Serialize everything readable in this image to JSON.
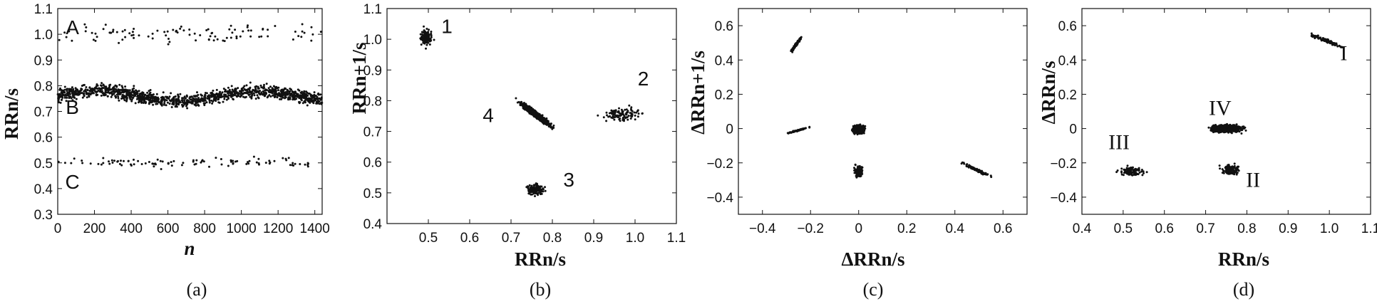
{
  "chart_data": [
    {
      "type": "scatter",
      "caption": "(a)",
      "xlabel": "n",
      "ylabel": "RRn/s",
      "xlim": [
        0,
        1440
      ],
      "ylim": [
        0.3,
        1.1
      ],
      "xticks": [
        "0",
        "200",
        "400",
        "600",
        "800",
        "1000",
        "1200",
        "1400"
      ],
      "yticks": [
        "0.3",
        "0.4",
        "0.5",
        "0.6",
        "0.7",
        "0.8",
        "0.9",
        "1.0",
        "1.1"
      ],
      "annotations": [
        {
          "text": "A",
          "x": 80,
          "y": 1.0
        },
        {
          "text": "B",
          "x": 80,
          "y": 0.69
        },
        {
          "text": "C",
          "x": 80,
          "y": 0.4
        }
      ],
      "clusters": [
        {
          "band": "A",
          "n_range": [
            0,
            1440
          ],
          "y_center": 1.0,
          "y_spread": 0.04,
          "points": 130
        },
        {
          "band": "B",
          "n_range": [
            0,
            1440
          ],
          "y_center": 0.76,
          "y_spread": 0.025,
          "points": 1300
        },
        {
          "band": "C",
          "n_range": [
            0,
            1440
          ],
          "y_center": 0.5,
          "y_spread": 0.02,
          "points": 130
        }
      ]
    },
    {
      "type": "scatter",
      "caption": "(b)",
      "xlabel": "RRn/s",
      "ylabel": "RRn+1/s",
      "xlim": [
        0.4,
        1.1
      ],
      "ylim": [
        0.4,
        1.1
      ],
      "xticks": [
        "0.5",
        "0.6",
        "0.7",
        "0.8",
        "0.9",
        "1.0",
        "1.1"
      ],
      "yticks": [
        "0.4",
        "0.5",
        "0.6",
        "0.7",
        "0.8",
        "0.9",
        "1.0",
        "1.1"
      ],
      "annotations": [
        {
          "text": "1",
          "x": 0.545,
          "y": 1.02
        },
        {
          "text": "2",
          "x": 1.02,
          "y": 0.85
        },
        {
          "text": "3",
          "x": 0.84,
          "y": 0.52
        },
        {
          "text": "4",
          "x": 0.645,
          "y": 0.73
        }
      ],
      "clusters": [
        {
          "id": "1",
          "x": [
            0.47,
            0.52
          ],
          "y": [
            0.95,
            1.06
          ],
          "points": 120
        },
        {
          "id": "2",
          "x": [
            0.88,
            1.06
          ],
          "y": [
            0.71,
            0.8
          ],
          "points": 110
        },
        {
          "id": "3",
          "x": [
            0.72,
            0.8
          ],
          "y": [
            0.47,
            0.55
          ],
          "points": 110
        },
        {
          "id": "4",
          "x": [
            0.7,
            0.82
          ],
          "y": [
            0.69,
            0.82
          ],
          "points": 1100
        }
      ]
    },
    {
      "type": "scatter",
      "caption": "(c)",
      "xlabel": "ΔRRn/s",
      "ylabel": "ΔRRn+1/s",
      "xlim": [
        -0.5,
        0.7
      ],
      "ylim": [
        -0.5,
        0.7
      ],
      "xticks": [
        "−0.4",
        "−0.2",
        "0",
        "0.2",
        "0.4",
        "0.6"
      ],
      "yticks": [
        "−0.4",
        "−0.2",
        "0",
        "0.2",
        "0.4",
        "0.6"
      ],
      "clusters": [
        {
          "x": [
            -0.3,
            -0.22
          ],
          "y": [
            0.4,
            0.58
          ],
          "points": 110
        },
        {
          "x": [
            -0.32,
            -0.18
          ],
          "y": [
            -0.04,
            0.02
          ],
          "points": 100
        },
        {
          "x": [
            -0.04,
            0.04
          ],
          "y": [
            -0.05,
            0.04
          ],
          "points": 500
        },
        {
          "x": [
            -0.03,
            0.03
          ],
          "y": [
            -0.32,
            -0.18
          ],
          "points": 110
        },
        {
          "x": [
            0.38,
            0.6
          ],
          "y": [
            -0.32,
            -0.16
          ],
          "points": 110
        }
      ]
    },
    {
      "type": "scatter",
      "caption": "(d)",
      "xlabel": "RRn/s",
      "ylabel": "ΔRRn/s",
      "xlim": [
        0.4,
        1.1
      ],
      "ylim": [
        -0.5,
        0.7
      ],
      "xticks": [
        "0.4",
        "0.5",
        "0.6",
        "0.7",
        "0.8",
        "0.9",
        "1.0",
        "1.1"
      ],
      "yticks": [
        "−0.4",
        "−0.2",
        "0",
        "0.2",
        "0.4",
        "0.6"
      ],
      "annotations": [
        {
          "text": "I",
          "x": 1.035,
          "y": 0.4
        },
        {
          "text": "II",
          "x": 0.815,
          "y": -0.34
        },
        {
          "text": "III",
          "x": 0.49,
          "y": -0.12
        },
        {
          "text": "IV",
          "x": 0.735,
          "y": 0.08
        }
      ],
      "clusters": [
        {
          "id": "I",
          "x": [
            0.93,
            1.06
          ],
          "y": [
            0.44,
            0.58
          ],
          "points": 110
        },
        {
          "id": "II",
          "x": [
            0.72,
            0.8
          ],
          "y": [
            -0.3,
            -0.18
          ],
          "points": 110
        },
        {
          "id": "III",
          "x": [
            0.47,
            0.57
          ],
          "y": [
            -0.3,
            -0.2
          ],
          "points": 110
        },
        {
          "id": "IV",
          "x": [
            0.69,
            0.81
          ],
          "y": [
            -0.04,
            0.04
          ],
          "points": 1100
        }
      ]
    }
  ]
}
